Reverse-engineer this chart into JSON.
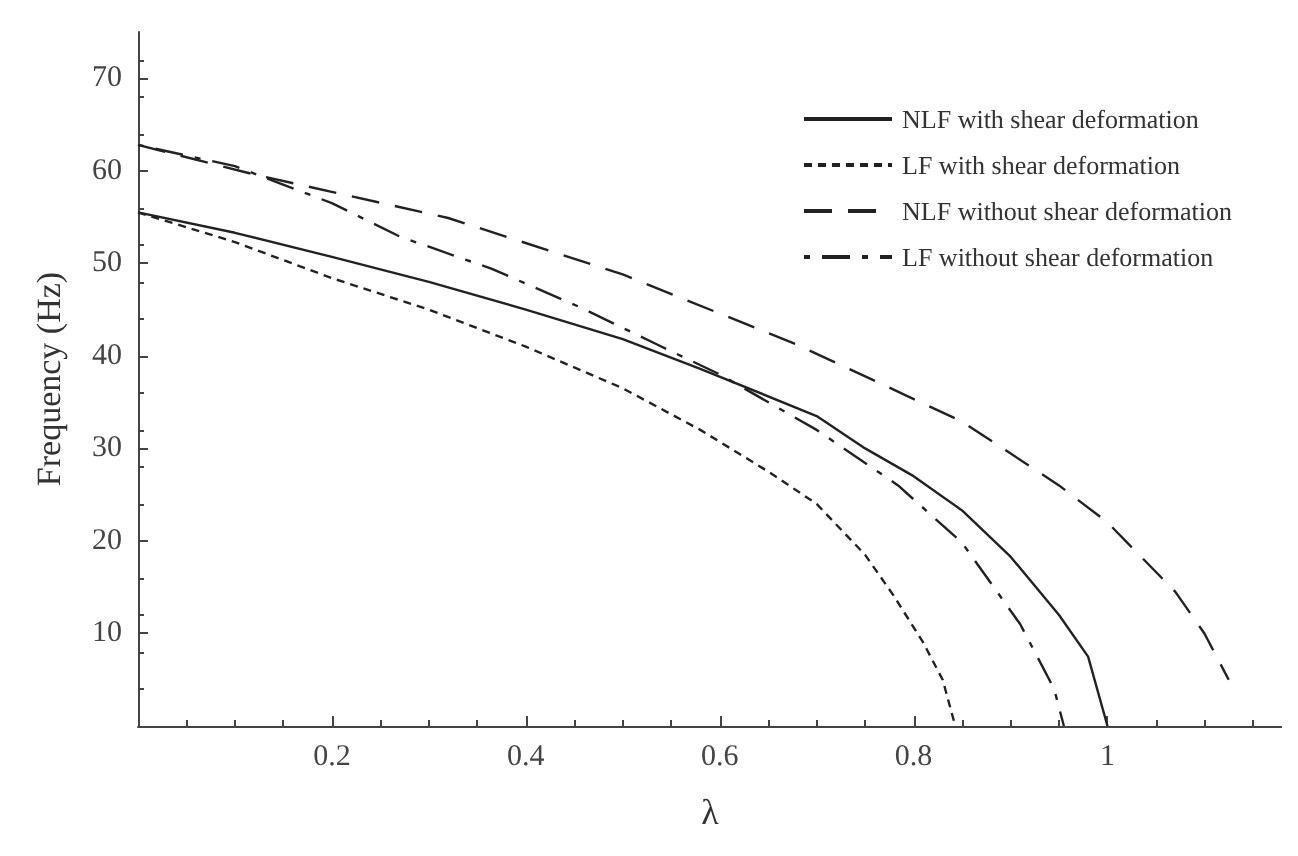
{
  "chart_data": {
    "type": "line",
    "xlabel": "λ",
    "ylabel": "Frequency (Hz)",
    "xlim": [
      0,
      1.18
    ],
    "ylim": [
      0,
      75
    ],
    "xticks": [
      0.2,
      0.4,
      0.6,
      0.8,
      1
    ],
    "yticks": [
      10,
      20,
      30,
      40,
      50,
      60,
      70
    ],
    "grid": false,
    "legend": "top right",
    "marker": "none",
    "series": [
      {
        "name": "NLF with shear deformation",
        "color": "#222222",
        "line_style": "solid",
        "x": [
          0,
          0.1,
          0.2,
          0.3,
          0.4,
          0.5,
          0.58,
          0.7,
          0.75,
          0.8,
          0.85,
          0.9,
          0.95,
          0.98,
          1
        ],
        "values": [
          55.5,
          53.3,
          50.7,
          48,
          45,
          41.8,
          38.6,
          33.5,
          30,
          27,
          23.3,
          18.3,
          12,
          7.5,
          0
        ]
      },
      {
        "name": "LF with shear deformation",
        "color": "#222222",
        "line_style": "dotted",
        "x": [
          0,
          0.1,
          0.2,
          0.3,
          0.4,
          0.5,
          0.58,
          0.65,
          0.7,
          0.75,
          0.78,
          0.81,
          0.83,
          0.843
        ],
        "values": [
          55.5,
          52.3,
          48.4,
          45,
          41,
          36.5,
          32,
          27.5,
          24,
          18.5,
          14,
          9,
          5,
          0
        ]
      },
      {
        "name": "NLF without shear deformation",
        "color": "#222222",
        "line_style": "dashed",
        "x": [
          0,
          0.12,
          0.32,
          0.5,
          0.68,
          0.85,
          0.95,
          1.0,
          1.07,
          1.1,
          1.125
        ],
        "values": [
          62.8,
          59.6,
          54.9,
          48.8,
          41.2,
          32.9,
          26,
          22,
          14.5,
          10,
          5
        ]
      },
      {
        "name": "LF without shear deformation",
        "color": "#222222",
        "line_style": "dashdot",
        "x": [
          0,
          0.1,
          0.2,
          0.27,
          0.365,
          0.455,
          0.536,
          0.6,
          0.7,
          0.784,
          0.85,
          0.91,
          0.945,
          0.955
        ],
        "values": [
          62.8,
          60.5,
          56.5,
          52.9,
          49.4,
          45.3,
          41.2,
          38,
          32,
          26,
          19.8,
          11,
          4,
          0
        ]
      }
    ]
  }
}
